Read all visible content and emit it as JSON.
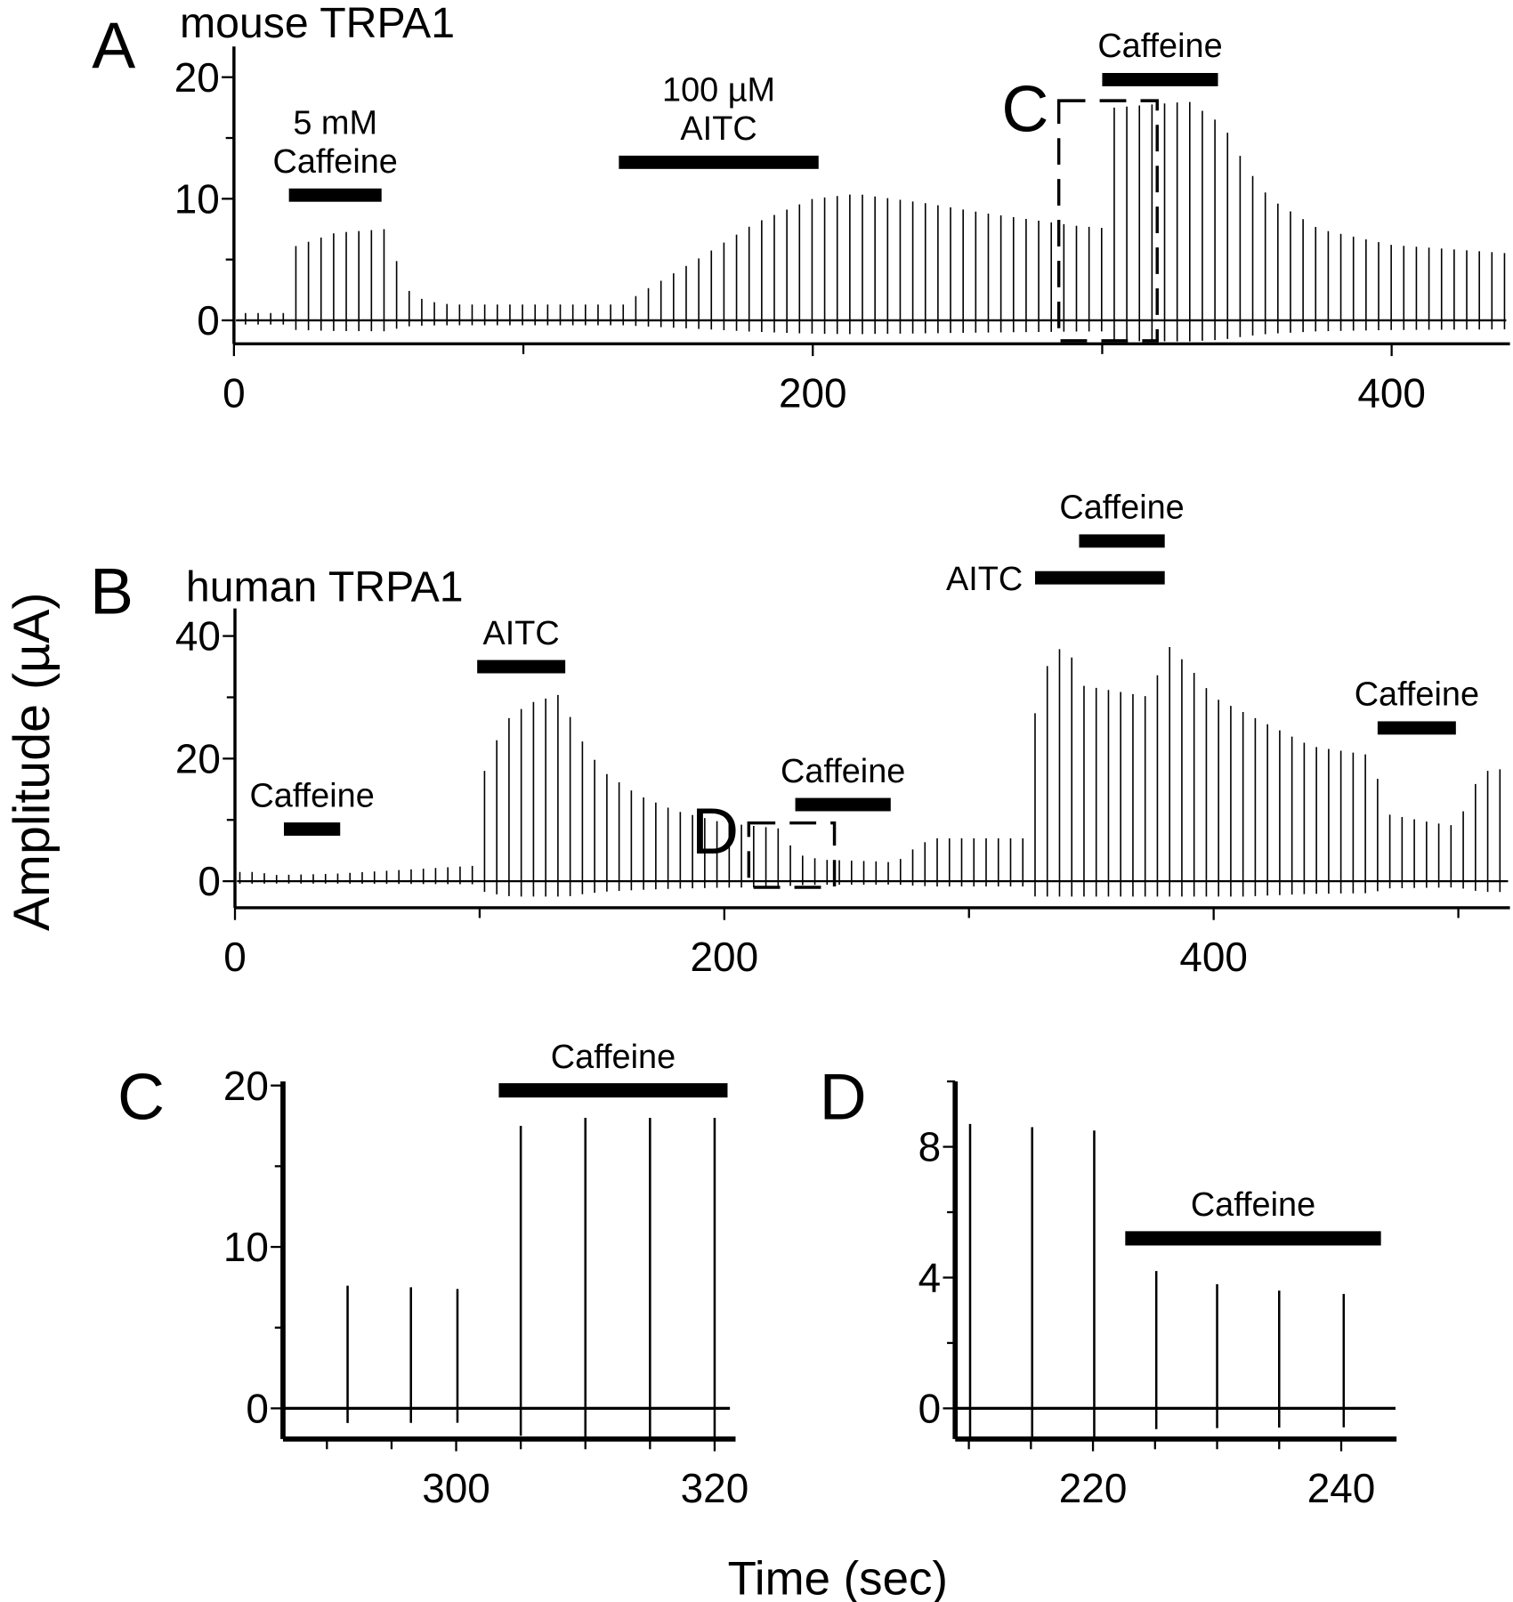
{
  "figure": {
    "ylabel": "Amplitude (µA)",
    "xlabel": "Time (sec)"
  },
  "chart_data": [
    {
      "panel": "A",
      "type": "line",
      "title": "mouse TRPA1",
      "xlim": [
        0,
        441
      ],
      "ylim": [
        -2,
        22
      ],
      "xticks": [
        "0",
        "200",
        "400"
      ],
      "xtick_values": [
        0,
        200,
        400
      ],
      "minor_xticks": [
        100,
        300
      ],
      "yticks": [
        "0",
        "10",
        "20"
      ],
      "ytick_values": [
        0,
        10,
        20
      ],
      "minor_yticks": [
        5,
        15
      ],
      "pulse_interval_s": 4.35,
      "pulse_start_s": 4,
      "envelope": [
        [
          0,
          0.6
        ],
        [
          18,
          0.6
        ],
        [
          20,
          6
        ],
        [
          35,
          7.2
        ],
        [
          52,
          7.5
        ],
        [
          56,
          5
        ],
        [
          60,
          2.5
        ],
        [
          66,
          1.6
        ],
        [
          75,
          1.3
        ],
        [
          135,
          1.3
        ],
        [
          140,
          2.2
        ],
        [
          160,
          5
        ],
        [
          180,
          8
        ],
        [
          200,
          10
        ],
        [
          215,
          10.4
        ],
        [
          240,
          9.6
        ],
        [
          260,
          8.8
        ],
        [
          290,
          7.8
        ],
        [
          300,
          7.6
        ],
        [
          304,
          17.5
        ],
        [
          330,
          18
        ],
        [
          342,
          16
        ],
        [
          350,
          12.5
        ],
        [
          358,
          10
        ],
        [
          375,
          7.5
        ],
        [
          400,
          6.2
        ],
        [
          441,
          5.5
        ]
      ],
      "annotations": [
        {
          "lines": [
            "5 mM",
            "Caffeine"
          ],
          "bar": [
            19,
            51
          ],
          "bar_level": 10.3
        },
        {
          "lines": [
            "100 µM",
            "AITC"
          ],
          "bar": [
            133,
            202
          ],
          "bar_level": 13
        },
        {
          "lines": [
            "Caffeine"
          ],
          "bar": [
            300,
            340
          ],
          "bar_level": 19.8
        }
      ],
      "inset": {
        "label": "C",
        "range": [
          285,
          319
        ]
      }
    },
    {
      "panel": "B",
      "type": "line",
      "title": "human TRPA1",
      "xlim": [
        0,
        522
      ],
      "ylim": [
        -4,
        44
      ],
      "xticks": [
        "0",
        "200",
        "400"
      ],
      "xtick_values": [
        0,
        200,
        400
      ],
      "minor_xticks": [
        100,
        300,
        500
      ],
      "yticks": [
        "0",
        "20",
        "40"
      ],
      "ytick_values": [
        0,
        20,
        40
      ],
      "minor_yticks": [
        10,
        30
      ],
      "pulse_interval_s": 5.0,
      "pulse_start_s": 2,
      "envelope": [
        [
          0,
          1.5
        ],
        [
          10,
          1.5
        ],
        [
          15,
          1
        ],
        [
          40,
          1.2
        ],
        [
          97,
          2.5
        ],
        [
          100,
          16
        ],
        [
          110,
          26
        ],
        [
          120,
          29
        ],
        [
          133,
          30.5
        ],
        [
          140,
          24
        ],
        [
          150,
          18
        ],
        [
          165,
          14
        ],
        [
          180,
          11.5
        ],
        [
          200,
          9.5
        ],
        [
          225,
          8.5
        ],
        [
          228,
          4.5
        ],
        [
          240,
          3.5
        ],
        [
          265,
          3.2
        ],
        [
          270,
          3
        ],
        [
          278,
          5.5
        ],
        [
          285,
          7
        ],
        [
          322,
          7
        ],
        [
          325,
          23
        ],
        [
          330,
          34
        ],
        [
          340,
          39.5
        ],
        [
          345,
          32
        ],
        [
          375,
          30
        ],
        [
          380,
          39
        ],
        [
          390,
          35
        ],
        [
          400,
          30
        ],
        [
          420,
          26
        ],
        [
          440,
          22
        ],
        [
          465,
          20.5
        ],
        [
          470,
          11
        ],
        [
          490,
          9.5
        ],
        [
          500,
          9
        ],
        [
          505,
          15
        ],
        [
          512,
          18
        ],
        [
          522,
          18.5
        ]
      ],
      "annotations": [
        {
          "lines": [
            "Caffeine"
          ],
          "bar": [
            20,
            43
          ],
          "bar_level": 8.5
        },
        {
          "lines": [
            "AITC"
          ],
          "bar": [
            99,
            135
          ],
          "bar_level": 35
        },
        {
          "lines": [
            "Caffeine"
          ],
          "bar": [
            229,
            268
          ],
          "bar_level": 12.5
        },
        {
          "lines": [
            "AITC"
          ],
          "bar": [
            327,
            380
          ],
          "bar_level": 49.5,
          "label_side": "left"
        },
        {
          "lines": [
            "Caffeine"
          ],
          "bar": [
            345,
            380
          ],
          "bar_level": 55.5
        },
        {
          "lines": [
            "Caffeine"
          ],
          "bar": [
            467,
            499
          ],
          "bar_level": 25
        }
      ],
      "inset": {
        "label": "D",
        "range": [
          210,
          245
        ]
      }
    },
    {
      "panel": "C",
      "type": "line",
      "xlim": [
        286.6,
        321.5
      ],
      "ylim": [
        -2,
        20
      ],
      "xticks": [
        "300",
        "320"
      ],
      "xtick_values": [
        300,
        320
      ],
      "minor_xticks": [
        290,
        295,
        305,
        310,
        315
      ],
      "yticks": [
        "0",
        "10",
        "20"
      ],
      "ytick_values": [
        0,
        10,
        20
      ],
      "minor_yticks": [
        5,
        15
      ],
      "spikes": {
        "t": [
          291.6,
          296.5,
          300.1,
          305,
          310,
          315,
          320
        ],
        "amplitude": [
          7.6,
          7.5,
          7.4,
          17.5,
          18,
          18,
          18
        ]
      },
      "annotations": [
        {
          "lines": [
            "Caffeine"
          ],
          "bar": [
            303.3,
            321
          ],
          "bar_level": 19.7
        }
      ]
    },
    {
      "panel": "D",
      "type": "line",
      "xlim": [
        208.9,
        244.7
      ],
      "ylim": [
        -1,
        10
      ],
      "xticks": [
        "220",
        "240"
      ],
      "xtick_values": [
        220,
        240
      ],
      "minor_xticks": [
        210,
        215,
        225,
        230,
        235
      ],
      "yticks": [
        "0",
        "4",
        "8"
      ],
      "ytick_values": [
        0,
        4,
        8
      ],
      "minor_yticks": [
        2,
        6,
        10
      ],
      "spikes": {
        "t": [
          210.1,
          215.1,
          220.1,
          225.1,
          230,
          235,
          240.2
        ],
        "amplitude": [
          8.7,
          8.6,
          8.5,
          4.2,
          3.8,
          3.6,
          3.5
        ]
      },
      "annotations": [
        {
          "lines": [
            "Caffeine"
          ],
          "bar": [
            222.6,
            243.2
          ],
          "bar_level": 5.2
        }
      ]
    }
  ]
}
